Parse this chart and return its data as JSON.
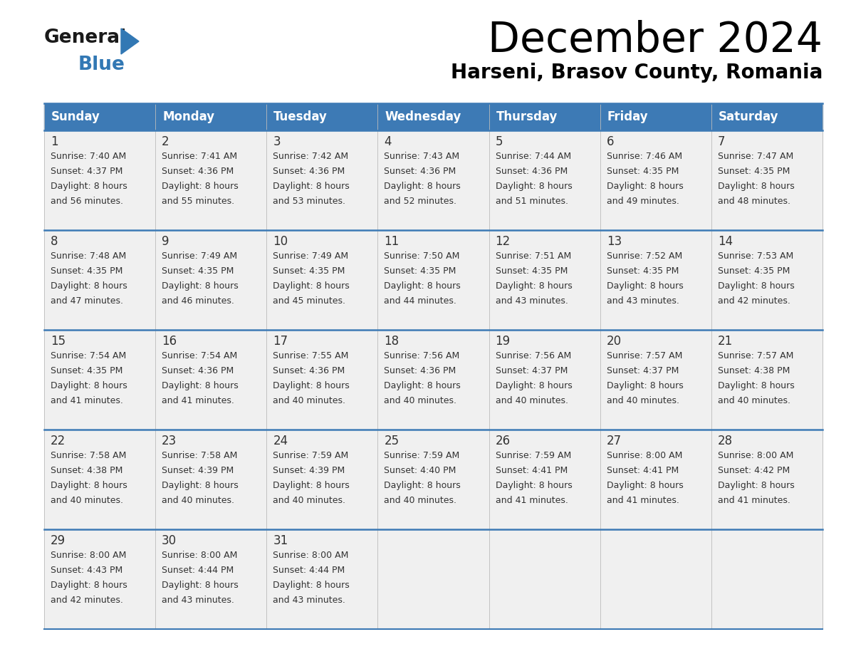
{
  "title": "December 2024",
  "subtitle": "Harseni, Brasov County, Romania",
  "header_color": "#3d7ab5",
  "header_text_color": "#ffffff",
  "cell_bg_color": "#f0f0f0",
  "day_number_color": "#333333",
  "cell_text_color": "#333333",
  "separator_color": "#3d7ab5",
  "days_of_week": [
    "Sunday",
    "Monday",
    "Tuesday",
    "Wednesday",
    "Thursday",
    "Friday",
    "Saturday"
  ],
  "weeks": [
    [
      {
        "day": "1",
        "sunrise": "7:40 AM",
        "sunset": "4:37 PM",
        "daylight_h": "8 hours",
        "daylight_m": "and 56 minutes."
      },
      {
        "day": "2",
        "sunrise": "7:41 AM",
        "sunset": "4:36 PM",
        "daylight_h": "8 hours",
        "daylight_m": "and 55 minutes."
      },
      {
        "day": "3",
        "sunrise": "7:42 AM",
        "sunset": "4:36 PM",
        "daylight_h": "8 hours",
        "daylight_m": "and 53 minutes."
      },
      {
        "day": "4",
        "sunrise": "7:43 AM",
        "sunset": "4:36 PM",
        "daylight_h": "8 hours",
        "daylight_m": "and 52 minutes."
      },
      {
        "day": "5",
        "sunrise": "7:44 AM",
        "sunset": "4:36 PM",
        "daylight_h": "8 hours",
        "daylight_m": "and 51 minutes."
      },
      {
        "day": "6",
        "sunrise": "7:46 AM",
        "sunset": "4:35 PM",
        "daylight_h": "8 hours",
        "daylight_m": "and 49 minutes."
      },
      {
        "day": "7",
        "sunrise": "7:47 AM",
        "sunset": "4:35 PM",
        "daylight_h": "8 hours",
        "daylight_m": "and 48 minutes."
      }
    ],
    [
      {
        "day": "8",
        "sunrise": "7:48 AM",
        "sunset": "4:35 PM",
        "daylight_h": "8 hours",
        "daylight_m": "and 47 minutes."
      },
      {
        "day": "9",
        "sunrise": "7:49 AM",
        "sunset": "4:35 PM",
        "daylight_h": "8 hours",
        "daylight_m": "and 46 minutes."
      },
      {
        "day": "10",
        "sunrise": "7:49 AM",
        "sunset": "4:35 PM",
        "daylight_h": "8 hours",
        "daylight_m": "and 45 minutes."
      },
      {
        "day": "11",
        "sunrise": "7:50 AM",
        "sunset": "4:35 PM",
        "daylight_h": "8 hours",
        "daylight_m": "and 44 minutes."
      },
      {
        "day": "12",
        "sunrise": "7:51 AM",
        "sunset": "4:35 PM",
        "daylight_h": "8 hours",
        "daylight_m": "and 43 minutes."
      },
      {
        "day": "13",
        "sunrise": "7:52 AM",
        "sunset": "4:35 PM",
        "daylight_h": "8 hours",
        "daylight_m": "and 43 minutes."
      },
      {
        "day": "14",
        "sunrise": "7:53 AM",
        "sunset": "4:35 PM",
        "daylight_h": "8 hours",
        "daylight_m": "and 42 minutes."
      }
    ],
    [
      {
        "day": "15",
        "sunrise": "7:54 AM",
        "sunset": "4:35 PM",
        "daylight_h": "8 hours",
        "daylight_m": "and 41 minutes."
      },
      {
        "day": "16",
        "sunrise": "7:54 AM",
        "sunset": "4:36 PM",
        "daylight_h": "8 hours",
        "daylight_m": "and 41 minutes."
      },
      {
        "day": "17",
        "sunrise": "7:55 AM",
        "sunset": "4:36 PM",
        "daylight_h": "8 hours",
        "daylight_m": "and 40 minutes."
      },
      {
        "day": "18",
        "sunrise": "7:56 AM",
        "sunset": "4:36 PM",
        "daylight_h": "8 hours",
        "daylight_m": "and 40 minutes."
      },
      {
        "day": "19",
        "sunrise": "7:56 AM",
        "sunset": "4:37 PM",
        "daylight_h": "8 hours",
        "daylight_m": "and 40 minutes."
      },
      {
        "day": "20",
        "sunrise": "7:57 AM",
        "sunset": "4:37 PM",
        "daylight_h": "8 hours",
        "daylight_m": "and 40 minutes."
      },
      {
        "day": "21",
        "sunrise": "7:57 AM",
        "sunset": "4:38 PM",
        "daylight_h": "8 hours",
        "daylight_m": "and 40 minutes."
      }
    ],
    [
      {
        "day": "22",
        "sunrise": "7:58 AM",
        "sunset": "4:38 PM",
        "daylight_h": "8 hours",
        "daylight_m": "and 40 minutes."
      },
      {
        "day": "23",
        "sunrise": "7:58 AM",
        "sunset": "4:39 PM",
        "daylight_h": "8 hours",
        "daylight_m": "and 40 minutes."
      },
      {
        "day": "24",
        "sunrise": "7:59 AM",
        "sunset": "4:39 PM",
        "daylight_h": "8 hours",
        "daylight_m": "and 40 minutes."
      },
      {
        "day": "25",
        "sunrise": "7:59 AM",
        "sunset": "4:40 PM",
        "daylight_h": "8 hours",
        "daylight_m": "and 40 minutes."
      },
      {
        "day": "26",
        "sunrise": "7:59 AM",
        "sunset": "4:41 PM",
        "daylight_h": "8 hours",
        "daylight_m": "and 41 minutes."
      },
      {
        "day": "27",
        "sunrise": "8:00 AM",
        "sunset": "4:41 PM",
        "daylight_h": "8 hours",
        "daylight_m": "and 41 minutes."
      },
      {
        "day": "28",
        "sunrise": "8:00 AM",
        "sunset": "4:42 PM",
        "daylight_h": "8 hours",
        "daylight_m": "and 41 minutes."
      }
    ],
    [
      {
        "day": "29",
        "sunrise": "8:00 AM",
        "sunset": "4:43 PM",
        "daylight_h": "8 hours",
        "daylight_m": "and 42 minutes."
      },
      {
        "day": "30",
        "sunrise": "8:00 AM",
        "sunset": "4:44 PM",
        "daylight_h": "8 hours",
        "daylight_m": "and 43 minutes."
      },
      {
        "day": "31",
        "sunrise": "8:00 AM",
        "sunset": "4:44 PM",
        "daylight_h": "8 hours",
        "daylight_m": "and 43 minutes."
      },
      null,
      null,
      null,
      null
    ]
  ],
  "logo_general_color": "#1a1a1a",
  "logo_blue_color": "#3278b4"
}
